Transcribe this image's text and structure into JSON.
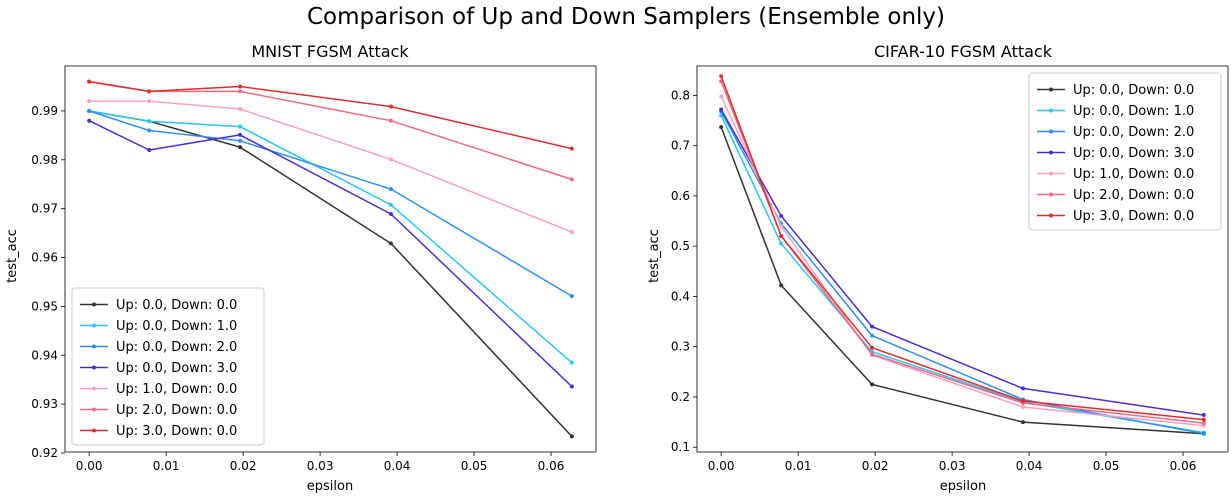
{
  "suptitle": "Comparison of Up and Down Samplers (Ensemble only)",
  "chart_data": [
    {
      "type": "line",
      "title": "MNIST FGSM Attack",
      "xlabel": "epsilon",
      "ylabel": "test_acc",
      "x": [
        0.0,
        0.0078,
        0.0196,
        0.0392,
        0.0627
      ],
      "xlim": [
        -0.00314,
        0.06584
      ],
      "ylim": [
        0.9202,
        0.9992
      ],
      "xticks": [
        0.0,
        0.01,
        0.02,
        0.03,
        0.04,
        0.05,
        0.06
      ],
      "xtick_labels": [
        "0.00",
        "0.01",
        "0.02",
        "0.03",
        "0.04",
        "0.05",
        "0.06"
      ],
      "yticks": [
        0.92,
        0.93,
        0.94,
        0.95,
        0.96,
        0.97,
        0.98,
        0.99
      ],
      "ytick_labels": [
        "0.92",
        "0.93",
        "0.94",
        "0.95",
        "0.96",
        "0.97",
        "0.98",
        "0.99"
      ],
      "legend": "lower-left",
      "grid": false,
      "series": [
        {
          "name": "Up: 0.0, Down: 0.0",
          "color": "#333333",
          "values": [
            0.99,
            0.9879,
            0.9826,
            0.9629,
            0.9234
          ]
        },
        {
          "name": "Up: 0.0, Down: 1.0",
          "color": "#29c5f6",
          "values": [
            0.99,
            0.9879,
            0.9868,
            0.9708,
            0.9385
          ]
        },
        {
          "name": "Up: 0.0, Down: 2.0",
          "color": "#2f8ff0",
          "values": [
            0.99,
            0.986,
            0.9839,
            0.974,
            0.9521
          ]
        },
        {
          "name": "Up: 0.0, Down: 3.0",
          "color": "#4b2fd0",
          "values": [
            0.988,
            0.982,
            0.9851,
            0.9689,
            0.9336
          ]
        },
        {
          "name": "Up: 1.0, Down: 0.0",
          "color": "#f7a1c4",
          "values": [
            0.992,
            0.992,
            0.9904,
            0.9801,
            0.9652
          ]
        },
        {
          "name": "Up: 2.0, Down: 0.0",
          "color": "#ee6c80",
          "values": [
            0.996,
            0.994,
            0.994,
            0.988,
            0.976
          ]
        },
        {
          "name": "Up: 3.0, Down: 0.0",
          "color": "#e32d2d",
          "values": [
            0.996,
            0.994,
            0.995,
            0.9909,
            0.9823
          ]
        }
      ]
    },
    {
      "type": "line",
      "title": "CIFAR-10 FGSM Attack",
      "xlabel": "epsilon",
      "ylabel": "test_acc",
      "x": [
        0.0,
        0.0078,
        0.0196,
        0.0392,
        0.0627
      ],
      "xlim": [
        -0.00314,
        0.06584
      ],
      "ylim": [
        0.0905,
        0.8585
      ],
      "xticks": [
        0.0,
        0.01,
        0.02,
        0.03,
        0.04,
        0.05,
        0.06
      ],
      "xtick_labels": [
        "0.00",
        "0.01",
        "0.02",
        "0.03",
        "0.04",
        "0.05",
        "0.06"
      ],
      "yticks": [
        0.1,
        0.2,
        0.3,
        0.4,
        0.5,
        0.6,
        0.7,
        0.8
      ],
      "ytick_labels": [
        "0.1",
        "0.2",
        "0.3",
        "0.4",
        "0.5",
        "0.6",
        "0.7",
        "0.8"
      ],
      "legend": "upper-right",
      "grid": false,
      "series": [
        {
          "name": "Up: 0.0, Down: 0.0",
          "color": "#333333",
          "values": [
            0.737,
            0.422,
            0.225,
            0.15,
            0.127
          ]
        },
        {
          "name": "Up: 0.0, Down: 1.0",
          "color": "#29c5f6",
          "values": [
            0.76,
            0.505,
            0.29,
            0.19,
            0.129
          ]
        },
        {
          "name": "Up: 0.0, Down: 2.0",
          "color": "#2f8ff0",
          "values": [
            0.768,
            0.545,
            0.322,
            0.195,
            0.127
          ]
        },
        {
          "name": "Up: 0.0, Down: 3.0",
          "color": "#4b2fd0",
          "values": [
            0.772,
            0.56,
            0.34,
            0.217,
            0.164
          ]
        },
        {
          "name": "Up: 1.0, Down: 0.0",
          "color": "#f7a1c4",
          "values": [
            0.798,
            0.54,
            0.283,
            0.18,
            0.143
          ]
        },
        {
          "name": "Up: 2.0, Down: 0.0",
          "color": "#ee6c80",
          "values": [
            0.828,
            0.52,
            0.285,
            0.188,
            0.148
          ]
        },
        {
          "name": "Up: 3.0, Down: 0.0",
          "color": "#e32d2d",
          "values": [
            0.838,
            0.52,
            0.298,
            0.192,
            0.155
          ]
        }
      ]
    }
  ]
}
